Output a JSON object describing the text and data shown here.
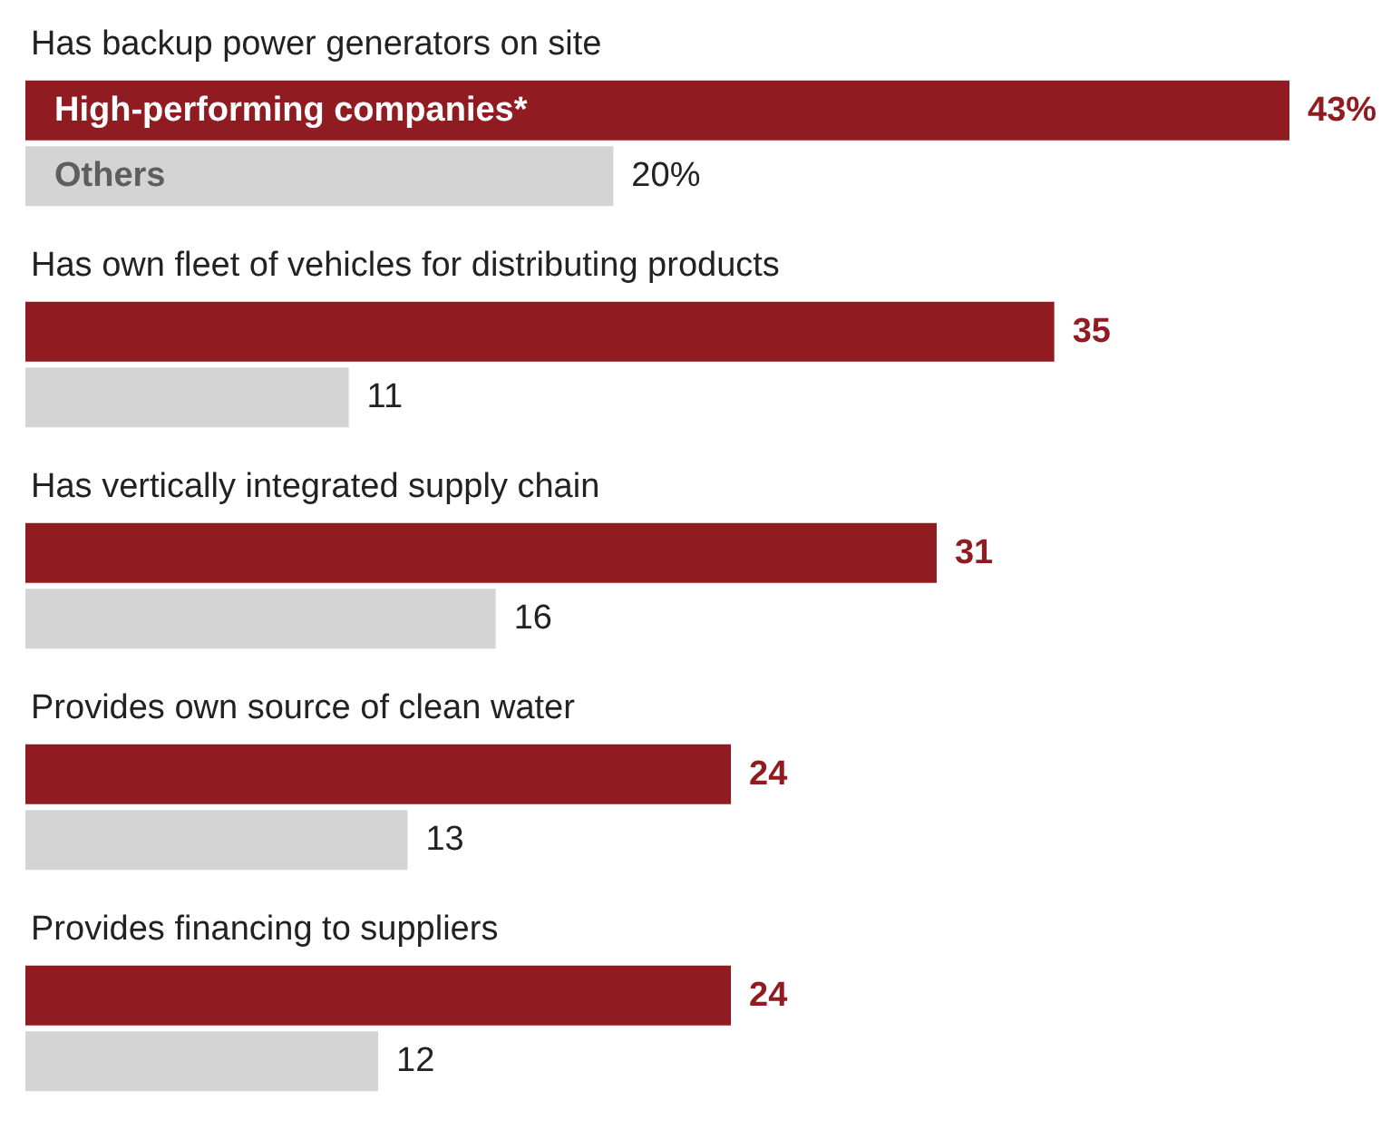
{
  "chart_data": {
    "type": "bar",
    "orientation": "horizontal",
    "tick_labels": "y",
    "categories": [
      "Has backup power generators on site",
      "Has own fleet of vehicles for distributing products",
      "Has vertically integrated supply chain",
      "Provides own source of clean water",
      "Provides financing to suppliers"
    ],
    "series": [
      {
        "name": "High-performing companies*",
        "color": "#901c22",
        "values": [
          43,
          35,
          31,
          24,
          24
        ],
        "value_labels": [
          "43%",
          "35",
          "31",
          "24",
          "24"
        ]
      },
      {
        "name": "Others",
        "color": "#d4d4d4",
        "values": [
          20,
          11,
          16,
          13,
          12
        ],
        "value_labels": [
          "20%",
          "11",
          "16",
          "13",
          "12"
        ]
      }
    ]
  }
}
